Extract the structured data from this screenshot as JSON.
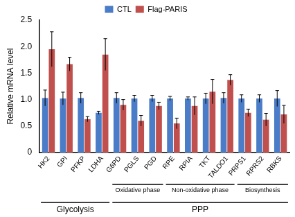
{
  "chart_data": {
    "type": "bar",
    "y_label": "Relative mRNA level",
    "categories": [
      "HK2",
      "GPI",
      "PFKP",
      "LDHA",
      "G6PD",
      "PGLS",
      "PGD",
      "RPE",
      "RPIA",
      "TKT",
      "TALDO1",
      "PRPS1",
      "RPRS2",
      "RBKS"
    ],
    "series": [
      {
        "name": "CTL",
        "color": "#4a7cc7",
        "values": [
          1.03,
          1.02,
          1.03,
          0.75,
          1.03,
          1.02,
          1.02,
          1.02,
          1.02,
          1.02,
          1.03,
          1.02,
          1.02,
          1.02
        ],
        "errors": [
          0.15,
          0.12,
          0.1,
          0.03,
          0.1,
          0.06,
          0.06,
          0.04,
          0.03,
          0.1,
          0.1,
          0.07,
          0.07,
          0.15
        ]
      },
      {
        "name": "Flag-PARIS",
        "color": "#c0504d",
        "values": [
          1.95,
          1.67,
          0.63,
          1.85,
          0.9,
          0.6,
          0.88,
          0.55,
          0.88,
          1.15,
          1.37,
          0.75,
          0.62,
          0.72
        ],
        "errors": [
          0.33,
          0.13,
          0.05,
          0.3,
          0.1,
          0.1,
          0.07,
          0.1,
          0.17,
          0.23,
          0.1,
          0.07,
          0.12,
          0.17
        ]
      }
    ],
    "subgroups": [
      {
        "label": "Oxidative phase",
        "categories": [
          "G6PD",
          "PGLS",
          "PGD"
        ]
      },
      {
        "label": "Non-oxidative phase",
        "categories": [
          "RPE",
          "RPIA",
          "TKT",
          "TALDO1"
        ]
      },
      {
        "label": "Biosynthesis",
        "categories": [
          "PRPS1",
          "RPRS2",
          "RBKS"
        ]
      }
    ],
    "groups": [
      {
        "label": "Glycolysis",
        "categories": [
          "HK2",
          "GPI",
          "PFKP",
          "LDHA"
        ]
      },
      {
        "label": "PPP",
        "categories": [
          "G6PD",
          "PGLS",
          "PGD",
          "RPE",
          "RPIA",
          "TKT",
          "TALDO1",
          "PRPS1",
          "RPRS2",
          "RBKS"
        ]
      }
    ],
    "ylim": [
      0,
      2.5
    ],
    "yticks": [
      0,
      0.5,
      {
        "value": 1,
        "label": "1.0"
      },
      1.5,
      {
        "value": 2,
        "label": "2.0"
      },
      2.5
    ],
    "grid": false,
    "legend": "top"
  }
}
